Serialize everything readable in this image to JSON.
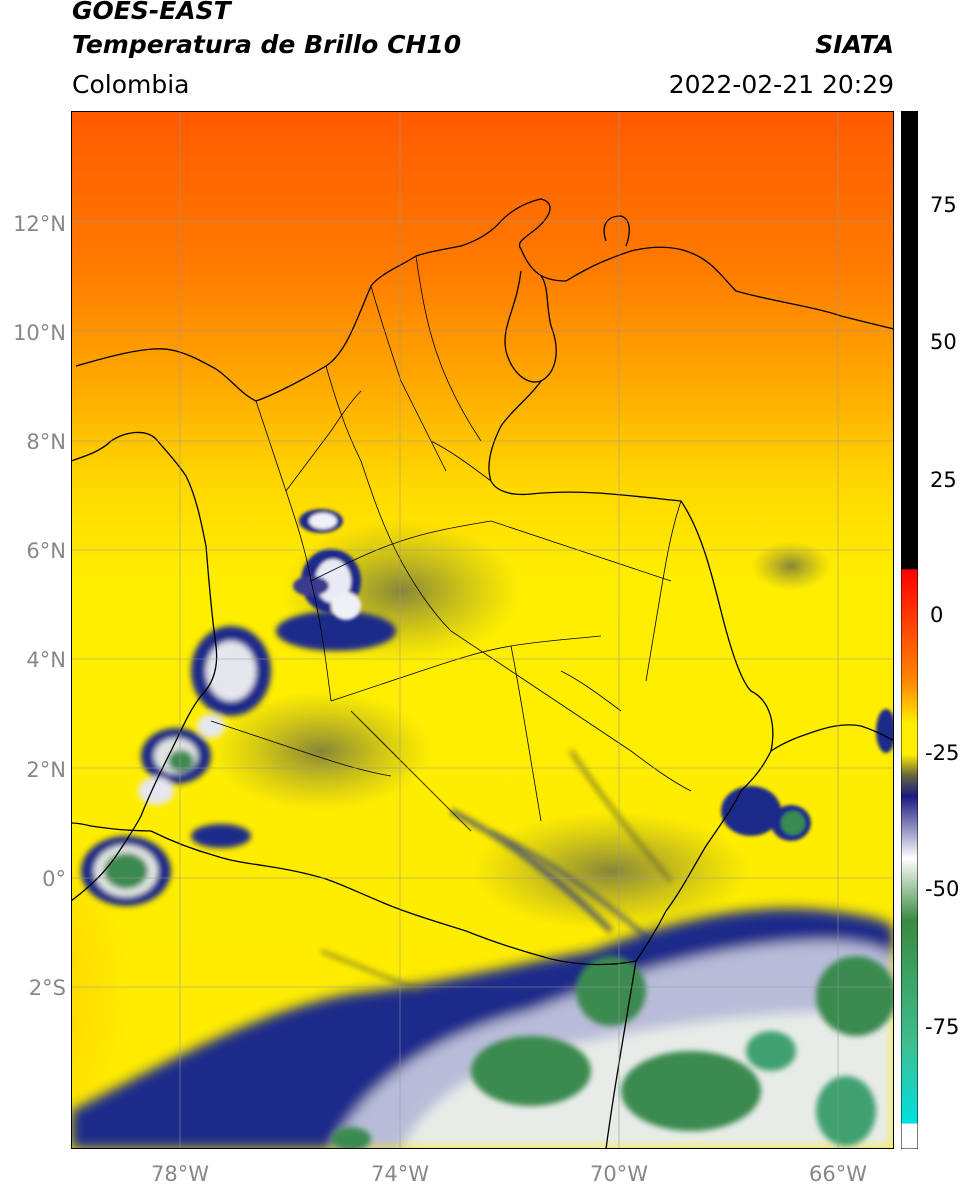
{
  "header": {
    "satellite": "GOES-EAST",
    "product": "Temperatura de Brillo CH10",
    "org": "SIATA",
    "region": "Colombia",
    "datetime": "2022-02-21 20:29"
  },
  "map": {
    "lat_labels": [
      "12°N",
      "10°N",
      "8°N",
      "6°N",
      "4°N",
      "2°N",
      "0°",
      "2°S"
    ],
    "lon_labels": [
      "78°W",
      "74°W",
      "70°W",
      "66°W"
    ],
    "extent": {
      "lon_min": -80.0,
      "lon_max": -65.0,
      "lat_min": -5.0,
      "lat_max": 14.0
    },
    "grid": true
  },
  "colorbar": {
    "ticks": [
      "75",
      "50",
      "25",
      "0",
      "-25",
      "-50",
      "-75"
    ],
    "tick_values": [
      75,
      50,
      25,
      0,
      -25,
      -50,
      -75
    ],
    "range": [
      -95,
      90
    ],
    "units": ""
  },
  "colors": {
    "warm": "#ff6600",
    "mid": "#ffee00",
    "cold_blue": "#1a1a80",
    "coldest_green": "#3a8a50",
    "text": "#000000",
    "axis_label": "#888888"
  }
}
